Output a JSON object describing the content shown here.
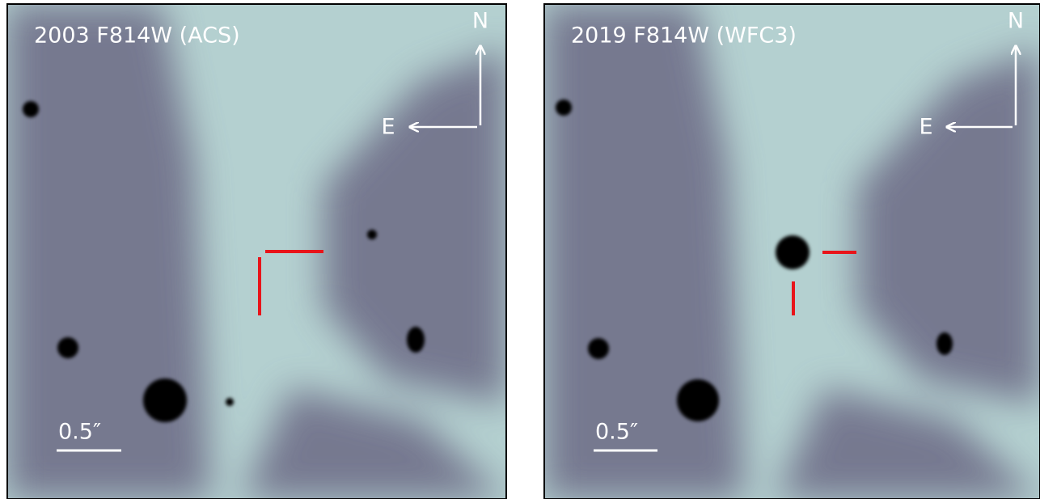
{
  "panels": [
    {
      "title": "2003 F814W (ACS)",
      "north": "N",
      "east": "E",
      "scale_label": "0.5″"
    },
    {
      "title": "2019 F814W (WFC3)",
      "north": "N",
      "east": "E",
      "scale_label": "0.5″"
    }
  ]
}
